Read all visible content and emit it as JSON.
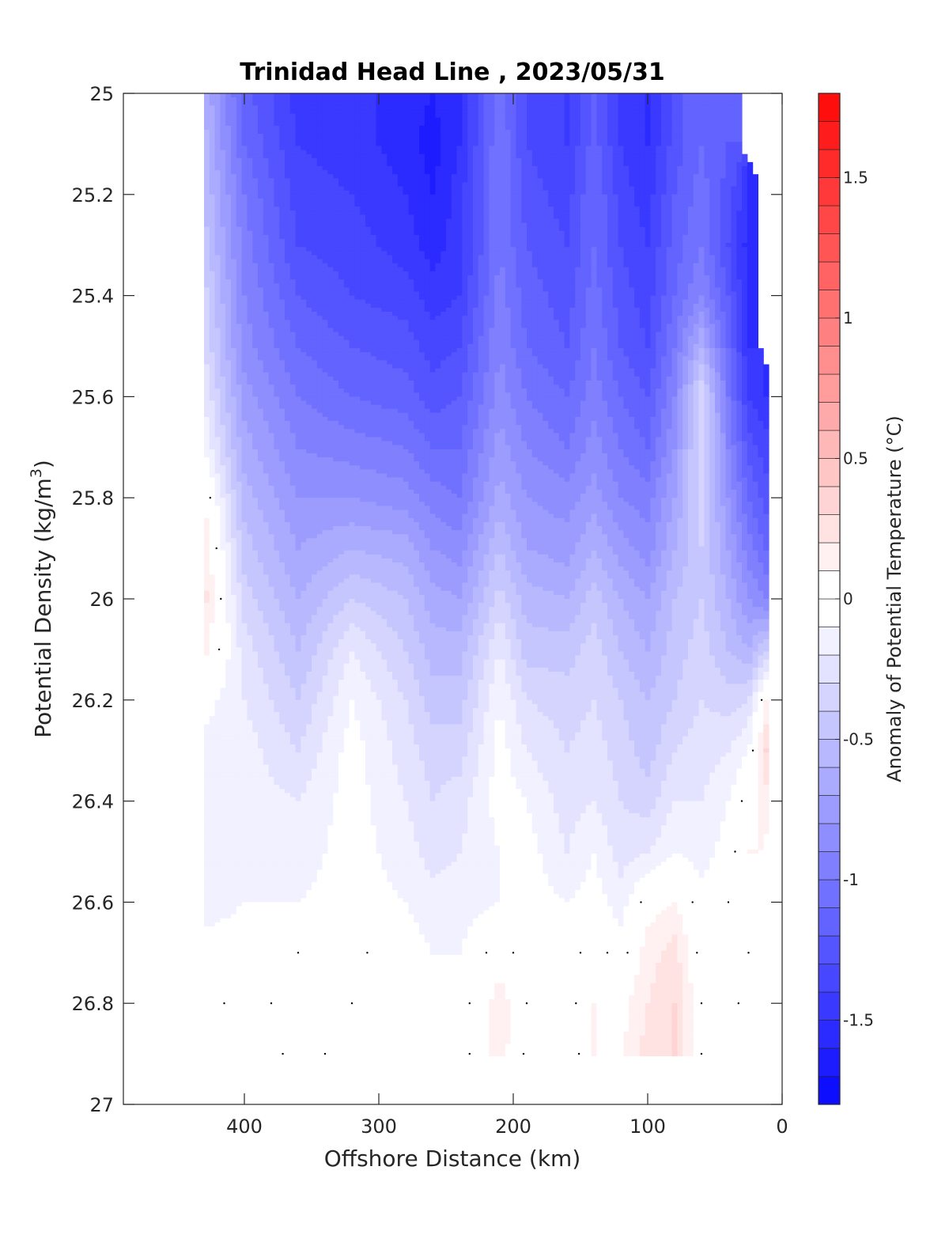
{
  "chart_data": {
    "type": "heatmap",
    "title": "Trinidad Head Line , 2023/05/31",
    "xlabel": "Offshore Distance (km)",
    "ylabel_main": "Potential Density (kg/m",
    "ylabel_sup": "3",
    "ylabel_close": ")",
    "colorbar_label": "Anomaly of Potential Temperature (°C)",
    "x_reversed": true,
    "y_reversed": true,
    "xlim": [
      0,
      490
    ],
    "ylim": [
      25,
      27
    ],
    "xticks": [
      400,
      300,
      200,
      100,
      0
    ],
    "xtick_labels": [
      "400",
      "300",
      "200",
      "100",
      "0"
    ],
    "yticks": [
      25,
      25.2,
      25.4,
      25.6,
      25.8,
      26,
      26.2,
      26.4,
      26.6,
      26.8,
      27
    ],
    "ytick_labels": [
      "25",
      "25.2",
      "25.4",
      "25.6",
      "25.8",
      "26",
      "26.2",
      "26.4",
      "26.6",
      "26.8",
      "27"
    ],
    "clim": [
      -1.8,
      1.8
    ],
    "cticks": [
      1.5,
      1,
      0.5,
      0,
      -0.5,
      -1,
      -1.5
    ],
    "ctick_labels": [
      "1.5",
      "1",
      "0.5",
      "0",
      "-0.5",
      "-1",
      "-1.5"
    ],
    "colormap": {
      "negative": "#0000ff",
      "zero": "#ffffff",
      "positive": "#ff0000"
    },
    "data_coverage": {
      "x_range": [
        12,
        430
      ],
      "y_range": [
        25,
        26.9
      ]
    },
    "x": [
      430,
      400,
      360,
      320,
      280,
      260,
      240,
      210,
      190,
      160,
      140,
      120,
      100,
      80,
      60,
      40,
      25,
      12
    ],
    "y": [
      25,
      25.1,
      25.2,
      25.3,
      25.4,
      25.5,
      25.6,
      25.7,
      25.8,
      25.9,
      26,
      26.1,
      26.2,
      26.3,
      26.4,
      26.5,
      26.6,
      26.7,
      26.8,
      26.9
    ],
    "z": [
      [
        -0.6,
        -1.15,
        -1.45,
        -1.45,
        -1.55,
        -1.6,
        -1.5,
        -1.05,
        -1.3,
        -1.4,
        -1.2,
        -1.4,
        -1.5,
        -1.25,
        -1.1,
        -1.1,
        null,
        null
      ],
      [
        -0.55,
        -1.1,
        -1.4,
        -1.45,
        -1.55,
        -1.65,
        -1.5,
        -1.0,
        -1.3,
        -1.4,
        -1.15,
        -1.4,
        -1.5,
        -1.25,
        -1.1,
        -1.2,
        null,
        null
      ],
      [
        -0.5,
        -1.0,
        -1.35,
        -1.4,
        -1.5,
        -1.6,
        -1.45,
        -1.0,
        -1.25,
        -1.35,
        -1.1,
        -1.35,
        -1.45,
        -1.2,
        -1.05,
        -1.25,
        -1.5,
        null
      ],
      [
        -0.45,
        -0.95,
        -1.3,
        -1.35,
        -1.45,
        -1.55,
        -1.45,
        -1.0,
        -1.2,
        -1.3,
        -1.1,
        -1.3,
        -1.4,
        -1.15,
        -1.0,
        -1.3,
        -1.55,
        null
      ],
      [
        -0.35,
        -0.9,
        -1.2,
        -1.3,
        -1.35,
        -1.45,
        -1.4,
        -0.95,
        -1.15,
        -1.25,
        -1.05,
        -1.25,
        -1.35,
        -1.1,
        -0.9,
        -1.2,
        -1.55,
        null
      ],
      [
        -0.3,
        -0.85,
        -1.1,
        -1.2,
        -1.25,
        -1.35,
        -1.3,
        -0.9,
        -1.1,
        -1.2,
        -1.0,
        -1.2,
        -1.3,
        -1.0,
        -0.6,
        -1.1,
        -1.5,
        null
      ],
      [
        -0.2,
        -0.75,
        -1.0,
        -1.1,
        -1.15,
        -1.25,
        -1.2,
        -0.85,
        -1.0,
        -1.1,
        -0.95,
        -1.1,
        -1.2,
        -0.9,
        -0.3,
        -1.0,
        -1.4,
        -1.5
      ],
      [
        -0.1,
        -0.65,
        -0.9,
        -0.95,
        -1.0,
        -1.1,
        -1.1,
        -0.75,
        -0.9,
        -1.0,
        -0.85,
        -1.0,
        -1.1,
        -0.8,
        -0.3,
        -0.9,
        -1.25,
        -1.35
      ],
      [
        0.1,
        -0.55,
        -0.8,
        -0.8,
        -0.85,
        -0.95,
        -1.0,
        -0.65,
        -0.8,
        -0.85,
        -0.75,
        -0.9,
        -0.95,
        -0.7,
        -0.35,
        -0.8,
        -1.1,
        -1.25
      ],
      [
        0.2,
        -0.45,
        -0.7,
        -0.6,
        -0.65,
        -0.8,
        -0.85,
        -0.5,
        -0.7,
        -0.75,
        -0.6,
        -0.75,
        -0.85,
        -0.6,
        -0.4,
        -0.7,
        -0.95,
        -1.1
      ],
      [
        0.25,
        -0.35,
        -0.6,
        -0.4,
        -0.5,
        -0.65,
        -0.7,
        -0.35,
        -0.55,
        -0.6,
        -0.45,
        -0.6,
        -0.7,
        -0.5,
        -0.4,
        -0.6,
        -0.8,
        -0.9
      ],
      [
        0.15,
        -0.25,
        -0.5,
        -0.2,
        -0.4,
        -0.55,
        -0.55,
        -0.2,
        -0.45,
        -0.45,
        -0.35,
        -0.5,
        -0.6,
        -0.45,
        -0.35,
        -0.5,
        -0.6,
        -0.4
      ],
      [
        -0.05,
        -0.2,
        -0.4,
        -0.1,
        -0.3,
        -0.45,
        -0.45,
        -0.1,
        -0.3,
        -0.35,
        -0.3,
        -0.4,
        -0.5,
        -0.4,
        -0.3,
        -0.35,
        -0.3,
        0.1
      ],
      [
        -0.15,
        -0.15,
        -0.3,
        -0.05,
        -0.25,
        -0.35,
        -0.35,
        -0.05,
        -0.2,
        -0.3,
        -0.25,
        -0.35,
        -0.45,
        -0.3,
        -0.25,
        -0.2,
        -0.1,
        0.3
      ],
      [
        -0.2,
        -0.15,
        -0.2,
        -0.05,
        -0.2,
        -0.3,
        -0.25,
        -0.05,
        -0.1,
        -0.25,
        -0.2,
        -0.3,
        -0.35,
        -0.2,
        -0.2,
        -0.1,
        0.05,
        0.15
      ],
      [
        -0.2,
        -0.15,
        -0.15,
        -0.05,
        -0.15,
        -0.25,
        -0.2,
        -0.1,
        -0.05,
        -0.2,
        -0.1,
        -0.25,
        -0.2,
        -0.1,
        -0.15,
        -0.05,
        0.1,
        null
      ],
      [
        -0.15,
        -0.1,
        -0.1,
        -0.05,
        -0.1,
        -0.15,
        -0.15,
        -0.1,
        -0.05,
        -0.1,
        -0.05,
        -0.15,
        0.05,
        0.1,
        -0.05,
        0.0,
        0.05,
        null
      ],
      [
        -0.05,
        -0.05,
        0.0,
        0.02,
        -0.05,
        -0.1,
        -0.1,
        0.05,
        -0.05,
        -0.05,
        0.05,
        -0.05,
        0.15,
        0.25,
        -0.05,
        -0.05,
        0.0,
        null
      ],
      [
        0.05,
        -0.05,
        0.05,
        0.0,
        -0.02,
        -0.05,
        -0.05,
        0.15,
        0.0,
        -0.05,
        0.1,
        0.05,
        0.2,
        0.3,
        0.0,
        -0.05,
        0.05,
        null
      ],
      [
        -0.1,
        -0.05,
        0.02,
        -0.02,
        -0.05,
        -0.02,
        -0.05,
        0.15,
        -0.02,
        -0.08,
        0.1,
        0.08,
        0.25,
        0.3,
        0.0,
        -0.05,
        null,
        null
      ]
    ]
  }
}
